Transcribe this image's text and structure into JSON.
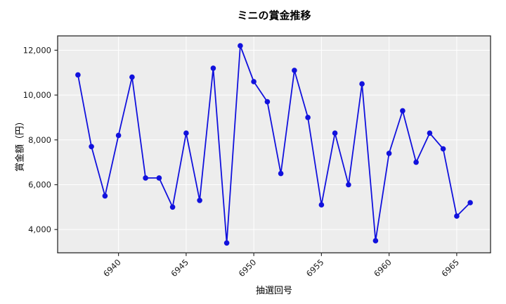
{
  "chart": {
    "title": "ミニの賞金推移",
    "xlabel": "抽選回号",
    "ylabel": "賞金額（円）"
  },
  "chart_data": {
    "type": "line",
    "title": "ミニの賞金推移",
    "xlabel": "抽選回号",
    "ylabel": "賞金額（円）",
    "x": [
      6937,
      6938,
      6939,
      6940,
      6941,
      6942,
      6943,
      6944,
      6945,
      6946,
      6947,
      6948,
      6949,
      6950,
      6951,
      6952,
      6953,
      6954,
      6955,
      6956,
      6957,
      6958,
      6959,
      6960,
      6961,
      6962,
      6963,
      6964,
      6965,
      6966
    ],
    "values": [
      10900,
      7700,
      5500,
      8200,
      10800,
      6300,
      6300,
      5000,
      8300,
      5300,
      11200,
      3400,
      12200,
      10600,
      9700,
      6500,
      11100,
      9000,
      5100,
      8300,
      6000,
      10500,
      3500,
      7400,
      9300,
      7000,
      8300,
      7600,
      4600,
      5200
    ],
    "xticks": [
      6940,
      6945,
      6950,
      6955,
      6960,
      6965
    ],
    "yticks": [
      4000,
      6000,
      8000,
      10000,
      12000
    ],
    "ytick_labels": [
      "4,000",
      "6,000",
      "8,000",
      "10,000",
      "12,000"
    ],
    "xlim": [
      6935.5,
      6967.5
    ],
    "ylim": [
      2960,
      12640
    ],
    "grid": true,
    "legend_position": "none",
    "line_color": "#1111DD",
    "marker": "circle",
    "plot_bg_color": "#EDEDED",
    "grid_color": "#FFFFFF",
    "spine_color": "#2B2B2B",
    "tick_label_color": "#1A1A1A"
  }
}
